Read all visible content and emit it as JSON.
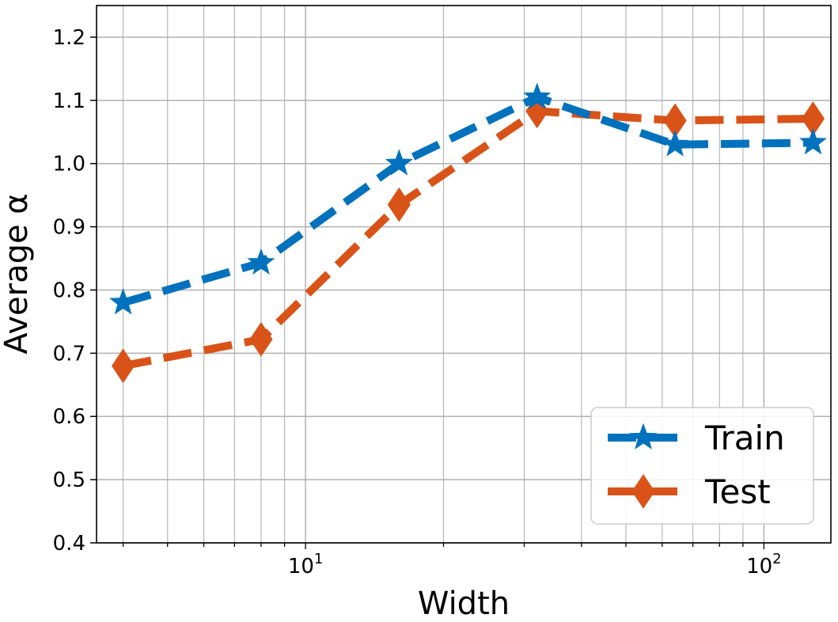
{
  "chart_data": {
    "type": "line",
    "title": "",
    "xlabel": "Width",
    "ylabel": "Average α",
    "xscale": "log",
    "xlim": [
      3.5,
      140
    ],
    "ylim": [
      0.4,
      1.25
    ],
    "y_ticks": [
      "0.4",
      "0.5",
      "0.6",
      "0.7",
      "0.8",
      "0.9",
      "1.0",
      "1.1",
      "1.2"
    ],
    "x_ticks": [
      {
        "base": "10",
        "exp": "1"
      },
      {
        "base": "10",
        "exp": "2"
      }
    ],
    "grid": true,
    "legend_position": "lower-right",
    "x": [
      4,
      8,
      16,
      32,
      64,
      128
    ],
    "series": [
      {
        "name": "Train",
        "values": [
          0.78,
          0.843,
          1.0,
          1.105,
          1.03,
          1.033
        ],
        "color": "#0072bd",
        "marker": "star"
      },
      {
        "name": "Test",
        "values": [
          0.68,
          0.722,
          0.935,
          1.083,
          1.068,
          1.071
        ],
        "color": "#d95319",
        "marker": "diamond"
      }
    ]
  }
}
